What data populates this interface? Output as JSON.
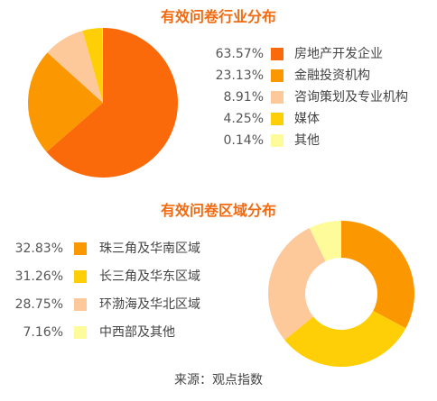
{
  "colors": {
    "title": "#f06b12",
    "s1": "#fb6a0a",
    "s2": "#fb9700",
    "s3": "#fdc89a",
    "s4": "#fece06",
    "s5": "#fefb9b"
  },
  "chart_data": [
    {
      "type": "pie",
      "title": "有效问卷行业分布",
      "categories": [
        "房地产开发企业",
        "金融投资机构",
        "咨询策划及专业机构",
        "媒体",
        "其他"
      ],
      "values": [
        63.57,
        23.13,
        8.91,
        4.25,
        0.14
      ],
      "labels": [
        "63.57%",
        "23.13%",
        "8.91%",
        "4.25%",
        "0.14%"
      ],
      "colors": [
        "#fb6a0a",
        "#fb9700",
        "#fdc89a",
        "#fece06",
        "#fefb9b"
      ],
      "legend_position": "right"
    },
    {
      "type": "pie",
      "donut": true,
      "title": "有效问卷区域分布",
      "categories": [
        "珠三角及华南区域",
        "长三角及华东区域",
        "环渤海及华北区域",
        "中西部及其他"
      ],
      "values": [
        32.83,
        31.26,
        28.75,
        7.16
      ],
      "labels": [
        "32.83%",
        "31.26%",
        "28.75%",
        "7.16%"
      ],
      "colors": [
        "#fb9700",
        "#fece06",
        "#fdc89a",
        "#fefb9b"
      ],
      "legend_position": "left"
    }
  ],
  "source": "来源：观点指数"
}
